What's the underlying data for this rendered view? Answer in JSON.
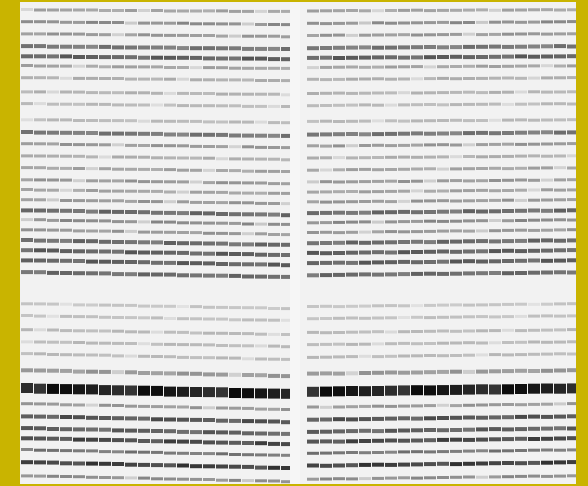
{
  "image": {
    "kind": "gel-electrophoresis-autoradiograph",
    "colors": {
      "frame": "#c9b400",
      "gel_background": "#f2f2f2",
      "band_dark": "#111111",
      "band_mid": "#555555",
      "band_light": "#bdbdbd"
    }
  }
}
